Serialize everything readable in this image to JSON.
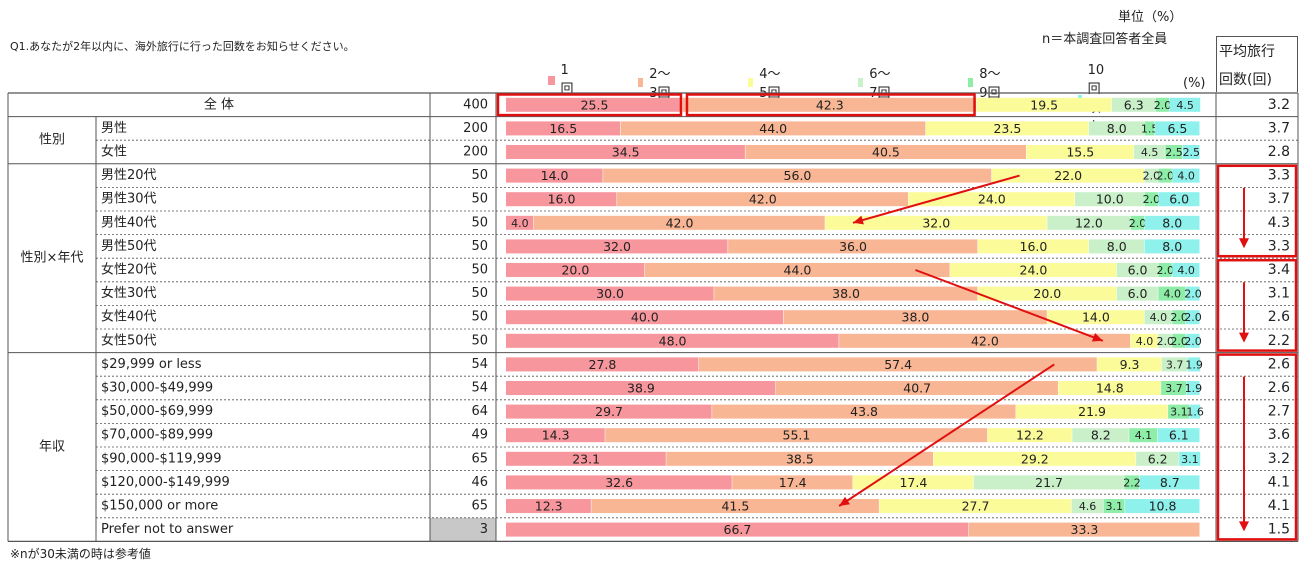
{
  "question": "Q1.あなたが2年以内に、海外旅行に行った回数をお知らせください。",
  "unit": "単位（%）",
  "n_note": "n＝本調査回答者全員",
  "pct_label": "(%)",
  "avg_header": [
    "平均旅行",
    "回数(回)"
  ],
  "footnote": "※nが30未満の時は参考値",
  "colors": [
    "#f7969c",
    "#f9b694",
    "#fbfb9a",
    "#c9f0c9",
    "#8eeea8",
    "#8ef1ec"
  ],
  "chart_data": {
    "type": "bar",
    "stacked": true,
    "orientation": "horizontal",
    "series_names": [
      "1回",
      "2〜3回",
      "4〜5回",
      "6〜7回",
      "8〜9回",
      "10回以上"
    ],
    "rows": [
      {
        "group": "全 体",
        "label": "",
        "n": "400",
        "values": [
          25.5,
          42.3,
          19.5,
          6.3,
          2.0,
          4.5
        ],
        "labels": [
          "25.5",
          "42.3",
          "19.5",
          "6.3",
          "2.0",
          "4.5"
        ],
        "avg": "3.2"
      },
      {
        "group": "性別",
        "label": "男性",
        "n": "200",
        "values": [
          16.5,
          44.0,
          23.5,
          8.0,
          1.5,
          6.5
        ],
        "labels": [
          "16.5",
          "44.0",
          "23.5",
          "8.0",
          "1.5",
          "6.5"
        ],
        "avg": "3.7"
      },
      {
        "group": "性別",
        "label": "女性",
        "n": "200",
        "values": [
          34.5,
          40.5,
          15.5,
          4.5,
          2.5,
          2.5
        ],
        "labels": [
          "34.5",
          "40.5",
          "15.5",
          "4.5",
          "2.5",
          "2.5"
        ],
        "avg": "2.8"
      },
      {
        "group": "性別×年代",
        "label": "男性20代",
        "n": "50",
        "values": [
          14.0,
          56.0,
          22.0,
          2.0,
          2.0,
          4.0
        ],
        "labels": [
          "14.0",
          "56.0",
          "22.0",
          "2.0",
          "2.0",
          "4.0"
        ],
        "avg": "3.3"
      },
      {
        "group": "性別×年代",
        "label": "男性30代",
        "n": "50",
        "values": [
          16.0,
          42.0,
          24.0,
          10.0,
          2.0,
          6.0
        ],
        "labels": [
          "16.0",
          "42.0",
          "24.0",
          "10.0",
          "2.0",
          "6.0"
        ],
        "avg": "3.7"
      },
      {
        "group": "性別×年代",
        "label": "男性40代",
        "n": "50",
        "values": [
          4.0,
          42.0,
          32.0,
          12.0,
          2.0,
          8.0
        ],
        "labels": [
          "4.0",
          "42.0",
          "32.0",
          "12.0",
          "2.0",
          "8.0"
        ],
        "avg": "4.3"
      },
      {
        "group": "性別×年代",
        "label": "男性50代",
        "n": "50",
        "values": [
          32.0,
          36.0,
          16.0,
          8.0,
          0,
          8.0
        ],
        "labels": [
          "32.0",
          "36.0",
          "16.0",
          "8.0",
          "",
          "8.0"
        ],
        "avg": "3.3"
      },
      {
        "group": "性別×年代",
        "label": "女性20代",
        "n": "50",
        "values": [
          20.0,
          44.0,
          24.0,
          6.0,
          2.0,
          4.0
        ],
        "labels": [
          "20.0",
          "44.0",
          "24.0",
          "6.0",
          "2.0",
          "4.0"
        ],
        "avg": "3.4"
      },
      {
        "group": "性別×年代",
        "label": "女性30代",
        "n": "50",
        "values": [
          30.0,
          38.0,
          20.0,
          6.0,
          4.0,
          2.0
        ],
        "labels": [
          "30.0",
          "38.0",
          "20.0",
          "6.0",
          "4.0",
          "2.0"
        ],
        "avg": "3.1"
      },
      {
        "group": "性別×年代",
        "label": "女性40代",
        "n": "50",
        "values": [
          40.0,
          38.0,
          14.0,
          4.0,
          2.0,
          2.0
        ],
        "labels": [
          "40.0",
          "38.0",
          "14.0",
          "4.0",
          "2.0",
          "2.0"
        ],
        "avg": "2.6"
      },
      {
        "group": "性別×年代",
        "label": "女性50代",
        "n": "50",
        "values": [
          48.0,
          42.0,
          4.0,
          2.0,
          2.0,
          2.0
        ],
        "labels": [
          "48.0",
          "42.0",
          "4.0",
          "2.0",
          "2.0",
          "2.0"
        ],
        "avg": "2.2"
      },
      {
        "group": "年収",
        "label": "$29,999  or  less",
        "n": "54",
        "values": [
          27.8,
          57.4,
          9.3,
          3.7,
          0,
          1.9
        ],
        "labels": [
          "27.8",
          "57.4",
          "9.3",
          "3.7",
          "",
          "1.9"
        ],
        "avg": "2.6"
      },
      {
        "group": "年収",
        "label": "$30,000-$49,999",
        "n": "54",
        "values": [
          38.9,
          40.7,
          14.8,
          0,
          3.7,
          1.9
        ],
        "labels": [
          "38.9",
          "40.7",
          "14.8",
          "",
          "3.7",
          "1.9"
        ],
        "avg": "2.6"
      },
      {
        "group": "年収",
        "label": "$50,000-$69,999",
        "n": "64",
        "values": [
          29.7,
          43.8,
          21.9,
          0,
          3.1,
          1.6
        ],
        "labels": [
          "29.7",
          "43.8",
          "21.9",
          "",
          "3.1",
          "1.6"
        ],
        "avg": "2.7"
      },
      {
        "group": "年収",
        "label": "$70,000-$89,999",
        "n": "49",
        "values": [
          14.3,
          55.1,
          12.2,
          8.2,
          4.1,
          6.1
        ],
        "labels": [
          "14.3",
          "55.1",
          "12.2",
          "8.2",
          "4.1",
          "6.1"
        ],
        "avg": "3.6"
      },
      {
        "group": "年収",
        "label": "$90,000-$119,999",
        "n": "65",
        "values": [
          23.1,
          38.5,
          29.2,
          6.2,
          0,
          3.1
        ],
        "labels": [
          "23.1",
          "38.5",
          "29.2",
          "6.2",
          "",
          "3.1"
        ],
        "avg": "3.2"
      },
      {
        "group": "年収",
        "label": "$120,000-$149,999",
        "n": "46",
        "values": [
          32.6,
          17.4,
          17.4,
          21.7,
          2.2,
          8.7
        ],
        "labels": [
          "32.6",
          "17.4",
          "17.4",
          "21.7",
          "2.2",
          "8.7"
        ],
        "avg": "4.1"
      },
      {
        "group": "年収",
        "label": "$150,000  or  more",
        "n": "65",
        "values": [
          12.3,
          41.5,
          27.7,
          4.6,
          3.1,
          10.8
        ],
        "labels": [
          "12.3",
          "41.5",
          "27.7",
          "4.6",
          "3.1",
          "10.8"
        ],
        "avg": "4.1"
      },
      {
        "group": "年収",
        "label": "Prefer  not  to  answer",
        "n": "3",
        "values": [
          66.7,
          33.3,
          0,
          0,
          0,
          0
        ],
        "labels": [
          "66.7",
          "33.3",
          "",
          "",
          "",
          ""
        ],
        "avg": "1.5",
        "reference": true
      }
    ],
    "groups": [
      {
        "name": "全 体",
        "rows": [
          0,
          0
        ]
      },
      {
        "name": "性別",
        "rows": [
          1,
          2
        ]
      },
      {
        "name": "性別×年代",
        "rows": [
          3,
          10
        ]
      },
      {
        "name": "年収",
        "rows": [
          11,
          18
        ]
      }
    ],
    "xlim": [
      0,
      100
    ],
    "legend_position": "top",
    "annotations": {
      "highlight_segments": [
        {
          "row": 0,
          "segment": 0
        },
        {
          "row": 0,
          "segment": 1
        }
      ],
      "highlight_avg_blocks": [
        {
          "rows": [
            3,
            6
          ]
        },
        {
          "rows": [
            7,
            10
          ]
        },
        {
          "rows": [
            11,
            18
          ]
        }
      ],
      "trend_arrows": [
        {
          "from_row": 3,
          "from_value": 74,
          "to_row": 5,
          "to_value": 50
        },
        {
          "from_row": 7,
          "from_value": 59,
          "to_row": 10,
          "to_value": 86
        },
        {
          "from_row": 11,
          "from_value": 79,
          "to_row": 17,
          "to_value": 48
        }
      ]
    }
  }
}
